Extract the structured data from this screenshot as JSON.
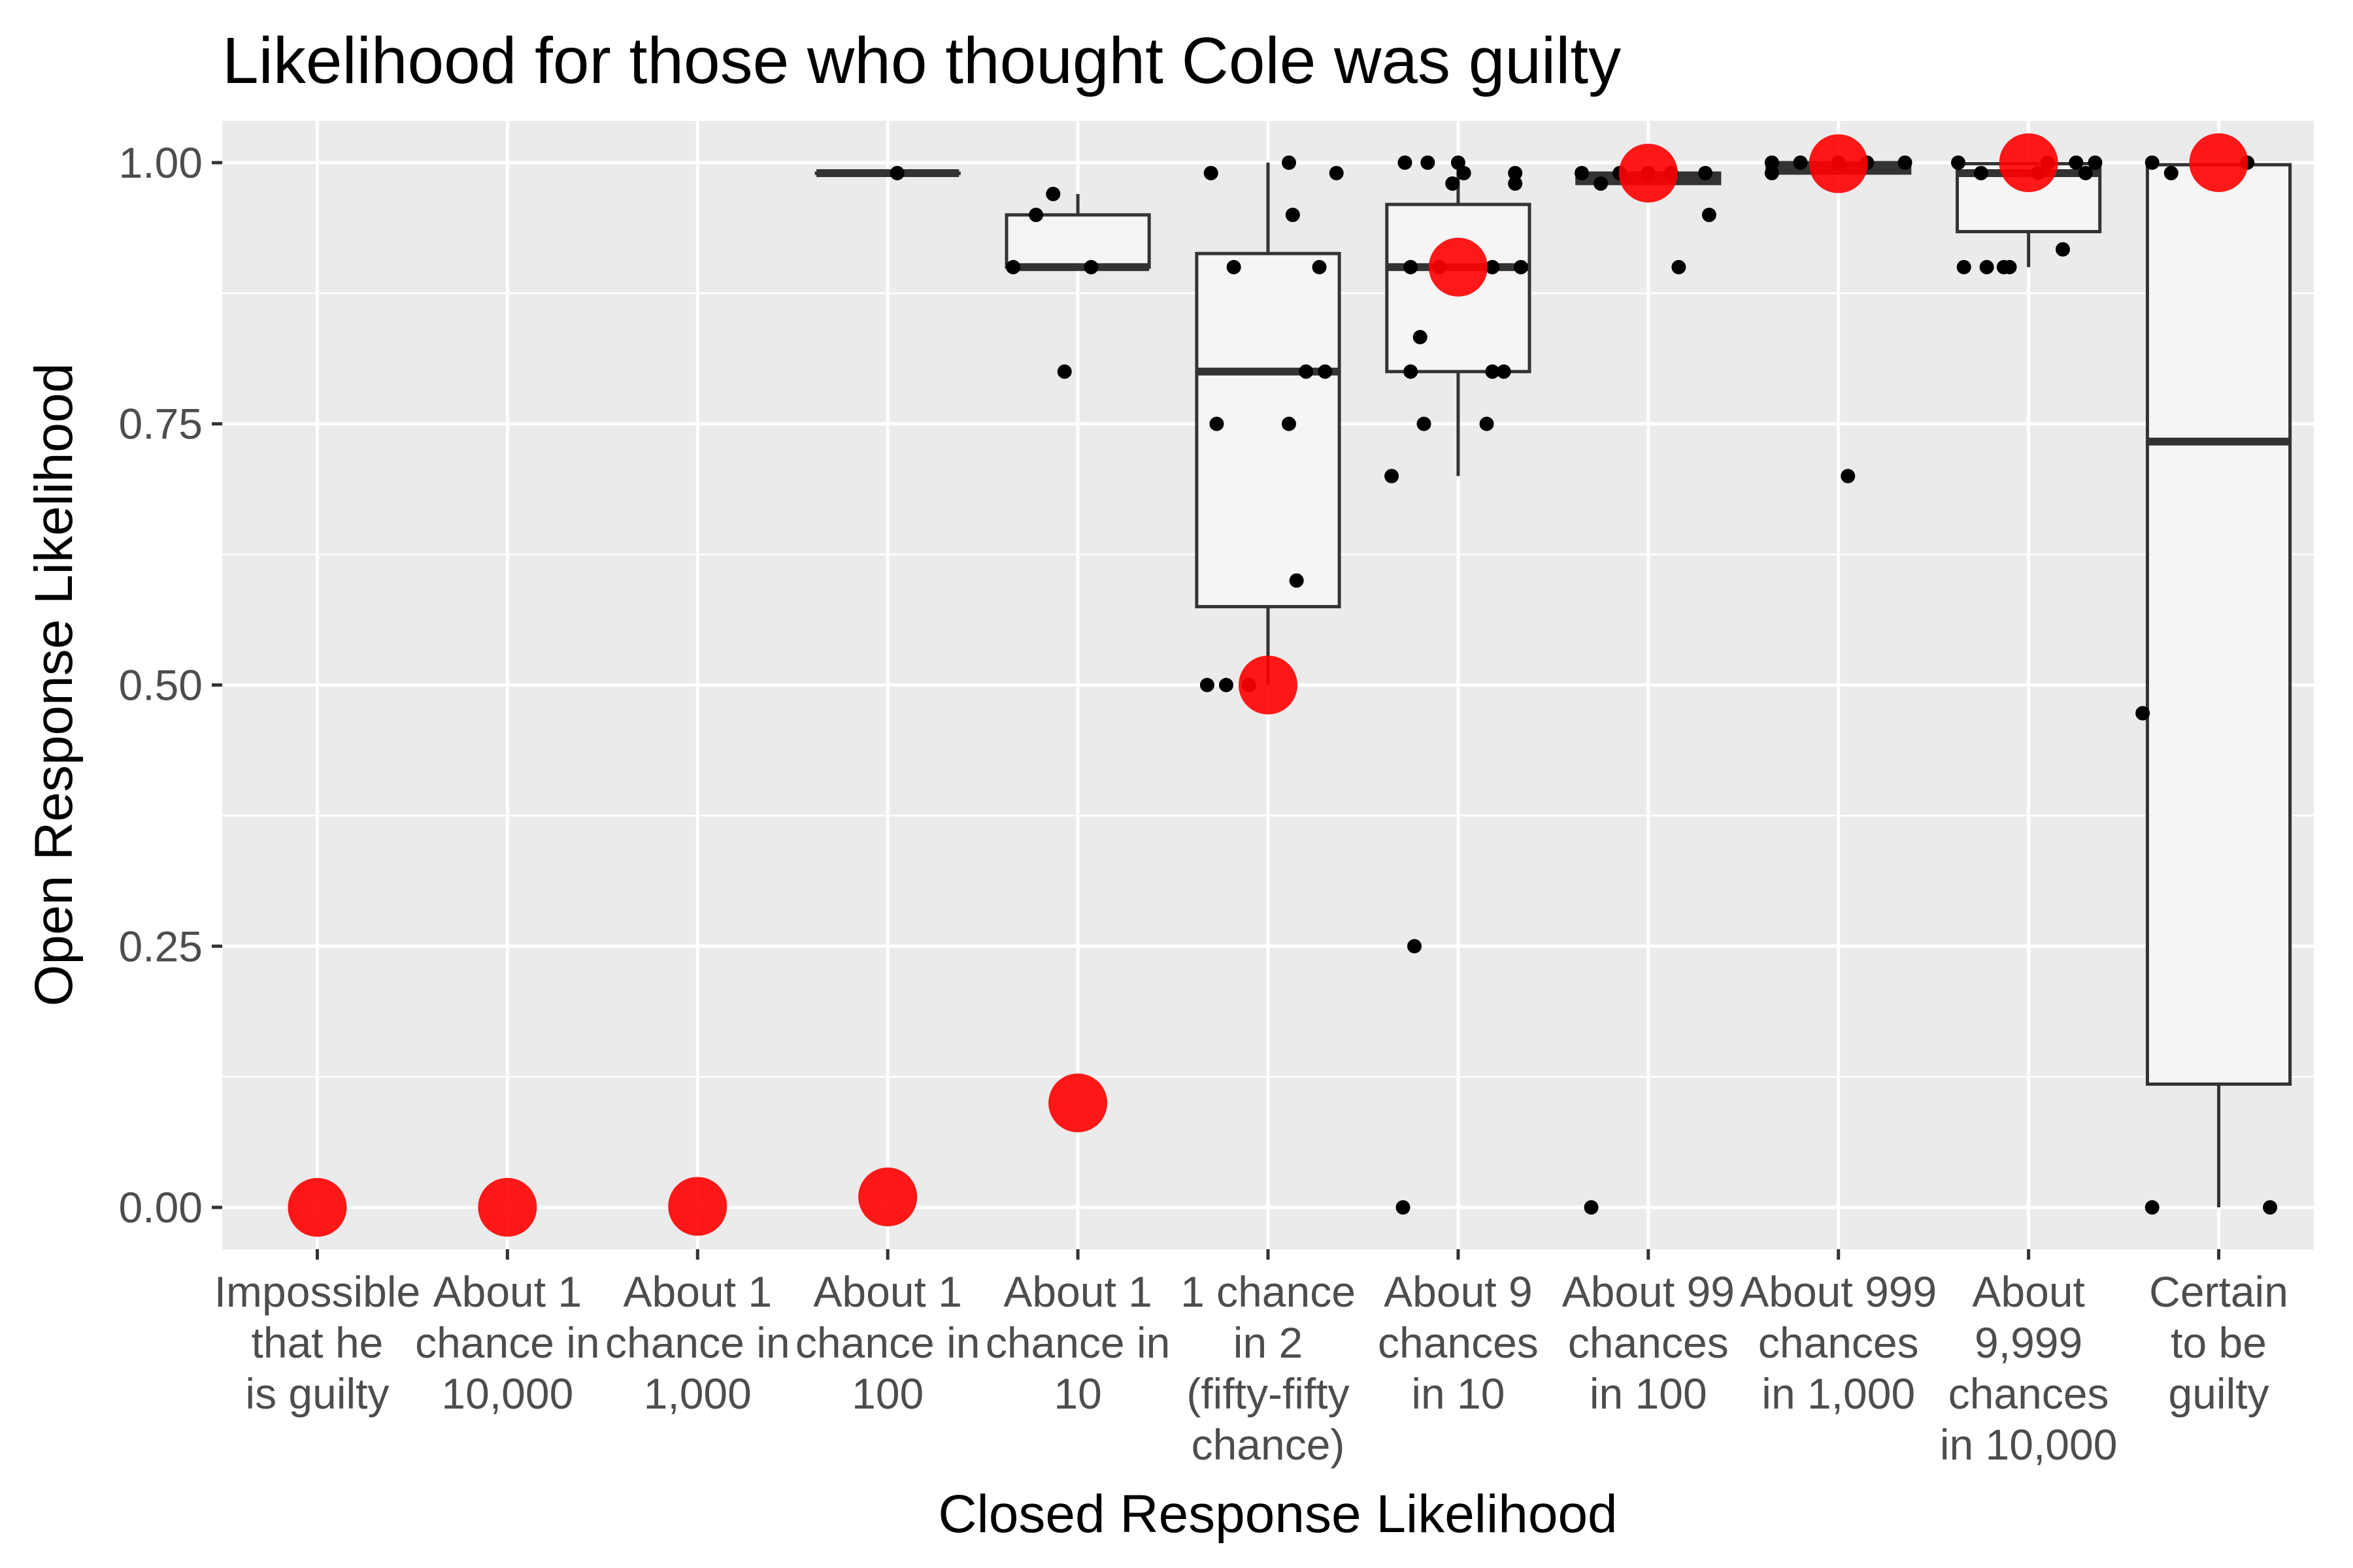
{
  "chart_data": {
    "type": "boxplot",
    "title": "Likelihood for those who thought Cole was guilty",
    "xlabel": "Closed Response Likelihood",
    "ylabel": "Open Response Likelihood",
    "ylim": [
      -0.04,
      1.04
    ],
    "yticks": [
      "0.00",
      "0.25",
      "0.50",
      "0.75",
      "1.00"
    ],
    "grid": true,
    "legend": "none",
    "colors": {
      "panel": "#ebebeb",
      "grid": "#ffffff",
      "box_fill": "#f5f5f5",
      "box_line": "#333333",
      "point": "#000000",
      "reference": "#ff0000"
    },
    "categories": [
      "Impossible\nthat he\nis guilty",
      "About 1\nchance in\n10,000",
      "About 1\nchance in\n1,000",
      "About 1\nchance in\n100",
      "About 1\nchance in\n10",
      "1 chance\nin 2\n(fifty-fifty\nchance)",
      "About 9\nchances\nin 10",
      "About 99\nchances\nin 100",
      "About 999\nchances\nin 1,000",
      "About\n9,999\nchances\nin 10,000",
      "Certain\nto be\nguilty"
    ],
    "reference_values": [
      0,
      0.0001,
      0.001,
      0.01,
      0.1,
      0.5,
      0.9,
      0.99,
      0.999,
      0.9999,
      1
    ],
    "boxes": [
      null,
      null,
      null,
      {
        "q1": 0.99,
        "median": 0.99,
        "q3": 0.99,
        "lower": 0.99,
        "upper": 0.99
      },
      {
        "q1": 0.9,
        "median": 0.9,
        "q3": 0.95,
        "lower": 0.9,
        "upper": 0.97
      },
      {
        "q1": 0.575,
        "median": 0.8,
        "q3": 0.913,
        "lower": 0.5,
        "upper": 1.0
      },
      {
        "q1": 0.8,
        "median": 0.9,
        "q3": 0.96,
        "lower": 0.7,
        "upper": 1.0
      },
      {
        "q1": 0.98,
        "median": 0.985,
        "q3": 0.99,
        "lower": 0.98,
        "upper": 0.99
      },
      {
        "q1": 0.99,
        "median": 0.995,
        "q3": 1.0,
        "lower": 0.99,
        "upper": 1.0
      },
      {
        "q1": 0.934,
        "median": 0.99,
        "q3": 0.999,
        "lower": 0.9,
        "upper": 1.0
      },
      {
        "q1": 0.118,
        "median": 0.733,
        "q3": 0.998,
        "lower": 0.0,
        "upper": 1.0
      }
    ],
    "points": [
      [],
      [],
      [],
      [
        {
          "dx": 0.05,
          "y": 0.99
        }
      ],
      [
        {
          "dx": -0.34,
          "y": 0.9
        },
        {
          "dx": -0.22,
          "y": 0.95
        },
        {
          "dx": -0.13,
          "y": 0.97
        },
        {
          "dx": 0.07,
          "y": 0.9
        },
        {
          "dx": -0.07,
          "y": 0.8
        }
      ],
      [
        {
          "dx": -0.3,
          "y": 0.99
        },
        {
          "dx": 0.11,
          "y": 1.0
        },
        {
          "dx": 0.36,
          "y": 0.99
        },
        {
          "dx": 0.13,
          "y": 0.95
        },
        {
          "dx": -0.18,
          "y": 0.9
        },
        {
          "dx": 0.27,
          "y": 0.9
        },
        {
          "dx": 0.2,
          "y": 0.8
        },
        {
          "dx": 0.3,
          "y": 0.8
        },
        {
          "dx": -0.27,
          "y": 0.75
        },
        {
          "dx": 0.11,
          "y": 0.75
        },
        {
          "dx": 0.15,
          "y": 0.6
        },
        {
          "dx": -0.32,
          "y": 0.5
        },
        {
          "dx": -0.22,
          "y": 0.5
        },
        {
          "dx": -0.1,
          "y": 0.5
        }
      ],
      [
        {
          "dx": -0.28,
          "y": 1.0
        },
        {
          "dx": -0.16,
          "y": 1.0
        },
        {
          "dx": 0.0,
          "y": 1.0
        },
        {
          "dx": 0.03,
          "y": 0.99
        },
        {
          "dx": -0.03,
          "y": 0.98
        },
        {
          "dx": 0.3,
          "y": 0.99
        },
        {
          "dx": 0.3,
          "y": 0.98
        },
        {
          "dx": -0.25,
          "y": 0.9
        },
        {
          "dx": -0.1,
          "y": 0.9
        },
        {
          "dx": 0.18,
          "y": 0.9
        },
        {
          "dx": 0.33,
          "y": 0.9
        },
        {
          "dx": -0.2,
          "y": 0.833
        },
        {
          "dx": -0.25,
          "y": 0.8
        },
        {
          "dx": 0.18,
          "y": 0.8
        },
        {
          "dx": 0.24,
          "y": 0.8
        },
        {
          "dx": -0.18,
          "y": 0.75
        },
        {
          "dx": 0.15,
          "y": 0.75
        },
        {
          "dx": -0.35,
          "y": 0.7
        },
        {
          "dx": -0.23,
          "y": 0.25
        },
        {
          "dx": -0.29,
          "y": 0.0
        }
      ],
      [
        {
          "dx": -0.35,
          "y": 0.99
        },
        {
          "dx": -0.25,
          "y": 0.98
        },
        {
          "dx": -0.15,
          "y": 0.99
        },
        {
          "dx": 0.0,
          "y": 0.99
        },
        {
          "dx": 0.12,
          "y": 0.99
        },
        {
          "dx": 0.3,
          "y": 0.99
        },
        {
          "dx": 0.32,
          "y": 0.95
        },
        {
          "dx": 0.16,
          "y": 0.9
        },
        {
          "dx": -0.3,
          "y": 0.0
        }
      ],
      [
        {
          "dx": -0.35,
          "y": 1.0
        },
        {
          "dx": -0.35,
          "y": 0.99
        },
        {
          "dx": -0.2,
          "y": 1.0
        },
        {
          "dx": 0.0,
          "y": 1.0
        },
        {
          "dx": 0.15,
          "y": 1.0
        },
        {
          "dx": 0.35,
          "y": 1.0
        },
        {
          "dx": 0.05,
          "y": 0.7
        }
      ],
      [
        {
          "dx": -0.37,
          "y": 1.0
        },
        {
          "dx": -0.25,
          "y": 0.99
        },
        {
          "dx": 0.1,
          "y": 1.0
        },
        {
          "dx": 0.25,
          "y": 1.0
        },
        {
          "dx": 0.3,
          "y": 0.99
        },
        {
          "dx": 0.35,
          "y": 1.0
        },
        {
          "dx": 0.05,
          "y": 0.99
        },
        {
          "dx": -0.34,
          "y": 0.9
        },
        {
          "dx": -0.22,
          "y": 0.9
        },
        {
          "dx": -0.13,
          "y": 0.9
        },
        {
          "dx": -0.1,
          "y": 0.9
        },
        {
          "dx": 0.18,
          "y": 0.917
        }
      ],
      [
        {
          "dx": -0.35,
          "y": 1.0
        },
        {
          "dx": 0.15,
          "y": 1.0
        },
        {
          "dx": -0.25,
          "y": 0.99
        },
        {
          "dx": -0.4,
          "y": 0.473
        },
        {
          "dx": -0.35,
          "y": 0.0
        },
        {
          "dx": 0.27,
          "y": 0.0
        }
      ]
    ]
  }
}
